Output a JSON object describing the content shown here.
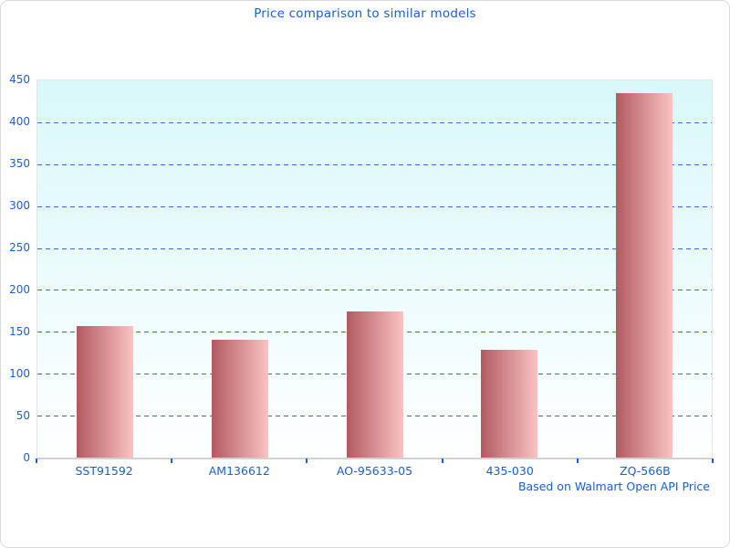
{
  "chart_data": {
    "type": "bar",
    "title": "Price comparison to similar models",
    "footnote": "Based on Walmart Open API Price",
    "categories": [
      "SST91592",
      "AM136612",
      "AO-95633-05",
      "435-030",
      "ZQ-566B"
    ],
    "values": [
      157,
      141,
      174,
      129,
      435
    ],
    "xlabel": "",
    "ylabel": "",
    "ylim": [
      0,
      450
    ],
    "yticks": [
      0,
      50,
      100,
      150,
      200,
      250,
      300,
      350,
      400,
      450
    ],
    "grid": "horizontal-dashed",
    "legend": "none",
    "colors": {
      "text": "#1a5fd0",
      "gridline": "#3a6bcc",
      "tick": "#1d5fd0",
      "bar_gradient_left": "#b25a61",
      "bar_gradient_right": "#fac3c2",
      "plot_bg_top": "#d9f8fa",
      "plot_bg_bottom": "#feffff",
      "axis_line": "#d2d2d2",
      "frame_border": "#d9d9d9"
    }
  }
}
